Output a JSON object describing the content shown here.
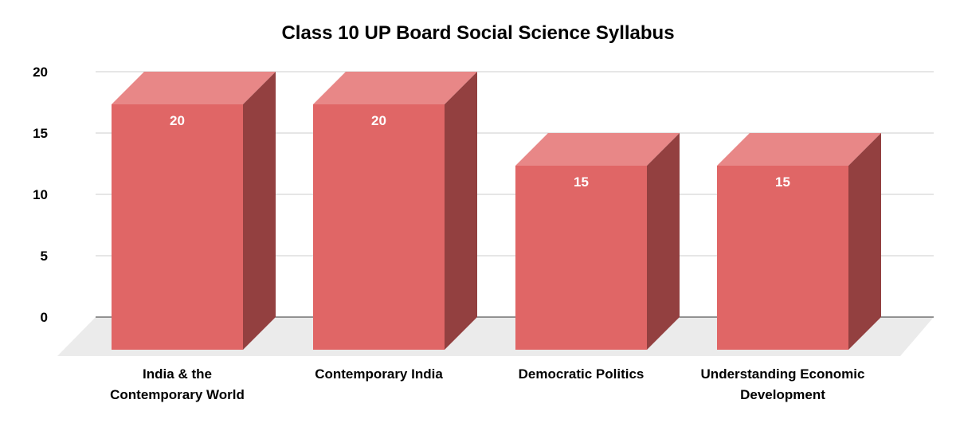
{
  "chart_data": {
    "type": "bar",
    "style": "3d",
    "title": "Class 10 UP Board Social Science Syllabus",
    "categories": [
      [
        "India & the",
        "Contemporary World"
      ],
      [
        "Contemporary India"
      ],
      [
        "Democratic Politics"
      ],
      [
        "Understanding Economic",
        "Development"
      ]
    ],
    "values": [
      20,
      20,
      15,
      15
    ],
    "data_labels": [
      "20",
      "20",
      "15",
      "15"
    ],
    "yticks": [
      "0",
      "5",
      "10",
      "15",
      "20"
    ],
    "ylim": [
      0,
      20
    ],
    "grid": true,
    "legend": "none",
    "colors": {
      "front": "#e06666",
      "top": "#e88787",
      "side": "#934040",
      "floor": "#ebebeb",
      "grid": "#cccccc"
    }
  }
}
